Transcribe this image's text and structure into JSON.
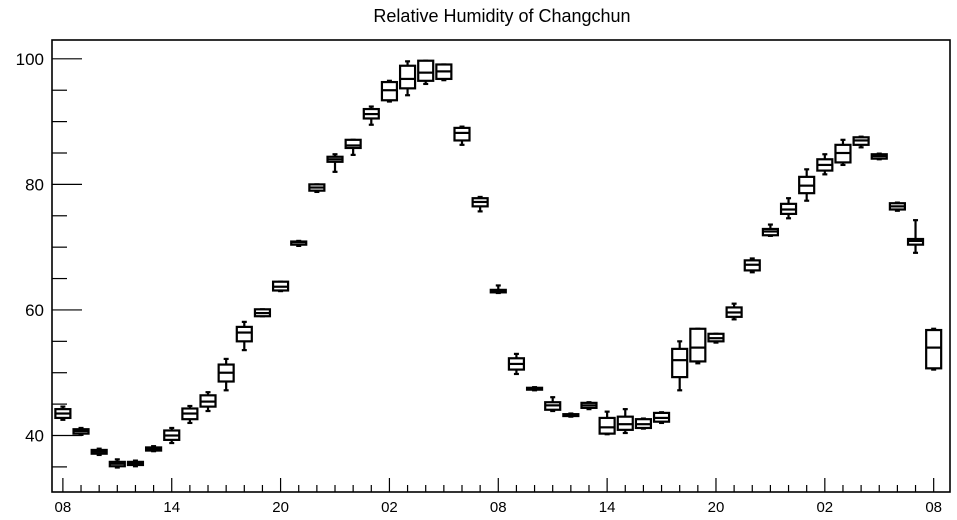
{
  "chart_data": {
    "type": "box",
    "title": "Relative Humidity of Changchun",
    "xlabel": "",
    "ylabel": "",
    "ylim": [
      31,
      103
    ],
    "yticks": [
      40,
      60,
      80,
      100
    ],
    "xticks": [
      {
        "x": 0,
        "label": "08"
      },
      {
        "x": 6,
        "label": "14"
      },
      {
        "x": 12,
        "label": "20"
      },
      {
        "x": 18,
        "label": "02"
      },
      {
        "x": 24,
        "label": "08"
      },
      {
        "x": 30,
        "label": "14"
      },
      {
        "x": 36,
        "label": "20"
      },
      {
        "x": 42,
        "label": "02"
      },
      {
        "x": 48,
        "label": "08"
      }
    ],
    "xlim": [
      -0.6,
      48.9
    ],
    "grid": false,
    "boxes": [
      {
        "x": 0,
        "min": 42.5,
        "q1": 42.8,
        "median": 43.5,
        "q3": 44.2,
        "max": 44.6
      },
      {
        "x": 1,
        "min": 40.1,
        "q1": 40.3,
        "median": 40.7,
        "q3": 41.0,
        "max": 41.2
      },
      {
        "x": 2,
        "min": 36.9,
        "q1": 37.1,
        "median": 37.4,
        "q3": 37.7,
        "max": 37.9
      },
      {
        "x": 3,
        "min": 34.9,
        "q1": 35.1,
        "median": 35.5,
        "q3": 35.8,
        "max": 36.2
      },
      {
        "x": 4,
        "min": 35.1,
        "q1": 35.3,
        "median": 35.6,
        "q3": 35.8,
        "max": 36.0
      },
      {
        "x": 5,
        "min": 37.5,
        "q1": 37.6,
        "median": 37.9,
        "q3": 38.1,
        "max": 38.3
      },
      {
        "x": 6,
        "min": 38.8,
        "q1": 39.3,
        "median": 40.0,
        "q3": 40.8,
        "max": 41.2
      },
      {
        "x": 7,
        "min": 42.0,
        "q1": 42.6,
        "median": 43.5,
        "q3": 44.3,
        "max": 44.7
      },
      {
        "x": 8,
        "min": 43.9,
        "q1": 44.6,
        "median": 45.4,
        "q3": 46.4,
        "max": 46.9
      },
      {
        "x": 9,
        "min": 47.2,
        "q1": 48.6,
        "median": 50.0,
        "q3": 51.3,
        "max": 52.2
      },
      {
        "x": 10,
        "min": 53.6,
        "q1": 55.0,
        "median": 56.4,
        "q3": 57.3,
        "max": 58.1
      },
      {
        "x": 11,
        "min": 59.0,
        "q1": 59.0,
        "median": 59.5,
        "q3": 60.1,
        "max": 60.1
      },
      {
        "x": 12,
        "min": 63.0,
        "q1": 63.1,
        "median": 63.7,
        "q3": 64.5,
        "max": 64.5
      },
      {
        "x": 13,
        "min": 70.2,
        "q1": 70.4,
        "median": 70.8,
        "q3": 70.9,
        "max": 71.0
      },
      {
        "x": 14,
        "min": 78.8,
        "q1": 79.0,
        "median": 79.5,
        "q3": 80.0,
        "max": 80.0
      },
      {
        "x": 15,
        "min": 82.0,
        "q1": 83.6,
        "median": 84.0,
        "q3": 84.4,
        "max": 84.8
      },
      {
        "x": 16,
        "min": 84.7,
        "q1": 85.8,
        "median": 86.2,
        "q3": 87.1,
        "max": 87.1
      },
      {
        "x": 17,
        "min": 89.5,
        "q1": 90.5,
        "median": 91.2,
        "q3": 92.0,
        "max": 92.4
      },
      {
        "x": 18,
        "min": 93.2,
        "q1": 93.4,
        "median": 95.0,
        "q3": 96.3,
        "max": 96.5
      },
      {
        "x": 19,
        "min": 94.2,
        "q1": 95.3,
        "median": 96.8,
        "q3": 98.9,
        "max": 99.6
      },
      {
        "x": 20,
        "min": 96.0,
        "q1": 96.5,
        "median": 97.8,
        "q3": 99.7,
        "max": 99.7
      },
      {
        "x": 21,
        "min": 96.6,
        "q1": 96.8,
        "median": 98.0,
        "q3": 99.1,
        "max": 99.1
      },
      {
        "x": 22,
        "min": 86.3,
        "q1": 87.0,
        "median": 88.2,
        "q3": 89.0,
        "max": 89.2
      },
      {
        "x": 23,
        "min": 75.7,
        "q1": 76.5,
        "median": 77.2,
        "q3": 77.8,
        "max": 78.0
      },
      {
        "x": 24,
        "min": 62.7,
        "q1": 62.8,
        "median": 63.0,
        "q3": 63.2,
        "max": 63.9
      },
      {
        "x": 25,
        "min": 49.8,
        "q1": 50.5,
        "median": 51.4,
        "q3": 52.3,
        "max": 53.0
      },
      {
        "x": 26,
        "min": 47.2,
        "q1": 47.3,
        "median": 47.5,
        "q3": 47.6,
        "max": 47.7
      },
      {
        "x": 27,
        "min": 43.9,
        "q1": 44.1,
        "median": 44.8,
        "q3": 45.3,
        "max": 46.1
      },
      {
        "x": 28,
        "min": 43.0,
        "q1": 43.1,
        "median": 43.2,
        "q3": 43.4,
        "max": 43.5
      },
      {
        "x": 29,
        "min": 44.2,
        "q1": 44.4,
        "median": 44.8,
        "q3": 45.2,
        "max": 45.3
      },
      {
        "x": 30,
        "min": 40.2,
        "q1": 40.3,
        "median": 41.3,
        "q3": 42.8,
        "max": 43.8
      },
      {
        "x": 31,
        "min": 40.4,
        "q1": 40.9,
        "median": 41.8,
        "q3": 43.0,
        "max": 44.2
      },
      {
        "x": 32,
        "min": 41.1,
        "q1": 41.2,
        "median": 41.8,
        "q3": 42.6,
        "max": 42.7
      },
      {
        "x": 33,
        "min": 42.0,
        "q1": 42.2,
        "median": 42.8,
        "q3": 43.6,
        "max": 43.7
      },
      {
        "x": 34,
        "min": 47.2,
        "q1": 49.3,
        "median": 52.0,
        "q3": 53.8,
        "max": 55.0
      },
      {
        "x": 35,
        "min": 51.5,
        "q1": 51.8,
        "median": 54.0,
        "q3": 57.0,
        "max": 57.0
      },
      {
        "x": 36,
        "min": 54.8,
        "q1": 55.0,
        "median": 55.5,
        "q3": 56.2,
        "max": 56.2
      },
      {
        "x": 37,
        "min": 58.5,
        "q1": 58.9,
        "median": 59.6,
        "q3": 60.4,
        "max": 61.0
      },
      {
        "x": 38,
        "min": 66.0,
        "q1": 66.3,
        "median": 67.2,
        "q3": 67.9,
        "max": 68.2
      },
      {
        "x": 39,
        "min": 71.8,
        "q1": 71.9,
        "median": 72.5,
        "q3": 72.9,
        "max": 73.6
      },
      {
        "x": 40,
        "min": 74.6,
        "q1": 75.3,
        "median": 76.0,
        "q3": 76.9,
        "max": 77.8
      },
      {
        "x": 41,
        "min": 77.4,
        "q1": 78.6,
        "median": 79.8,
        "q3": 81.2,
        "max": 82.4
      },
      {
        "x": 42,
        "min": 81.6,
        "q1": 82.2,
        "median": 83.1,
        "q3": 84.0,
        "max": 84.8
      },
      {
        "x": 43,
        "min": 83.1,
        "q1": 83.5,
        "median": 85.0,
        "q3": 86.3,
        "max": 87.1
      },
      {
        "x": 44,
        "min": 85.9,
        "q1": 86.3,
        "median": 87.0,
        "q3": 87.5,
        "max": 87.6
      },
      {
        "x": 45,
        "min": 84.0,
        "q1": 84.1,
        "median": 84.5,
        "q3": 84.8,
        "max": 84.9
      },
      {
        "x": 46,
        "min": 75.8,
        "q1": 76.0,
        "median": 76.5,
        "q3": 77.0,
        "max": 77.1
      },
      {
        "x": 47,
        "min": 69.1,
        "q1": 70.4,
        "median": 71.0,
        "q3": 71.3,
        "max": 74.3
      },
      {
        "x": 48,
        "min": 50.5,
        "q1": 50.7,
        "median": 54.0,
        "q3": 56.8,
        "max": 57.0
      }
    ]
  }
}
